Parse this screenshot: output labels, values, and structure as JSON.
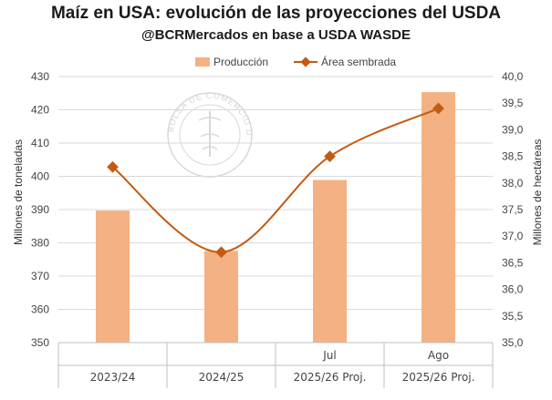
{
  "chart_data": {
    "type": "bar",
    "title": "Maíz en USA: evolución de las proyecciones del USDA",
    "subtitle": "@BCRMercados en base a USDA WASDE",
    "categories": [
      "2023/24",
      "2024/25",
      "2025/26 Proj.",
      "2025/26 Proj."
    ],
    "subcategories": [
      "",
      "",
      "Jul",
      "Ago"
    ],
    "series": [
      {
        "name": "Producción",
        "type": "bar",
        "axis": "left",
        "color": "#f4b183",
        "values": [
          389.7,
          377.6,
          398.9,
          425.3
        ]
      },
      {
        "name": "Área sembrada",
        "type": "line",
        "axis": "right",
        "color": "#c55a11",
        "values": [
          38.3,
          36.7,
          38.5,
          39.4
        ]
      }
    ],
    "ylabel": "Millones de toneladas",
    "y2label": "Millones de hectáreas",
    "ylim": [
      350,
      430
    ],
    "yticks": [
      "350",
      "360",
      "370",
      "380",
      "390",
      "400",
      "410",
      "420",
      "430"
    ],
    "y2lim": [
      35.0,
      40.0
    ],
    "y2ticks": [
      "35,0",
      "35,5",
      "36,0",
      "36,5",
      "37,0",
      "37,5",
      "38,0",
      "38,5",
      "39,0",
      "39,5",
      "40,0"
    ],
    "grid": true,
    "legend": "top-center",
    "watermark": "BOLSA DE COMERCIO DE ROSARIO"
  }
}
